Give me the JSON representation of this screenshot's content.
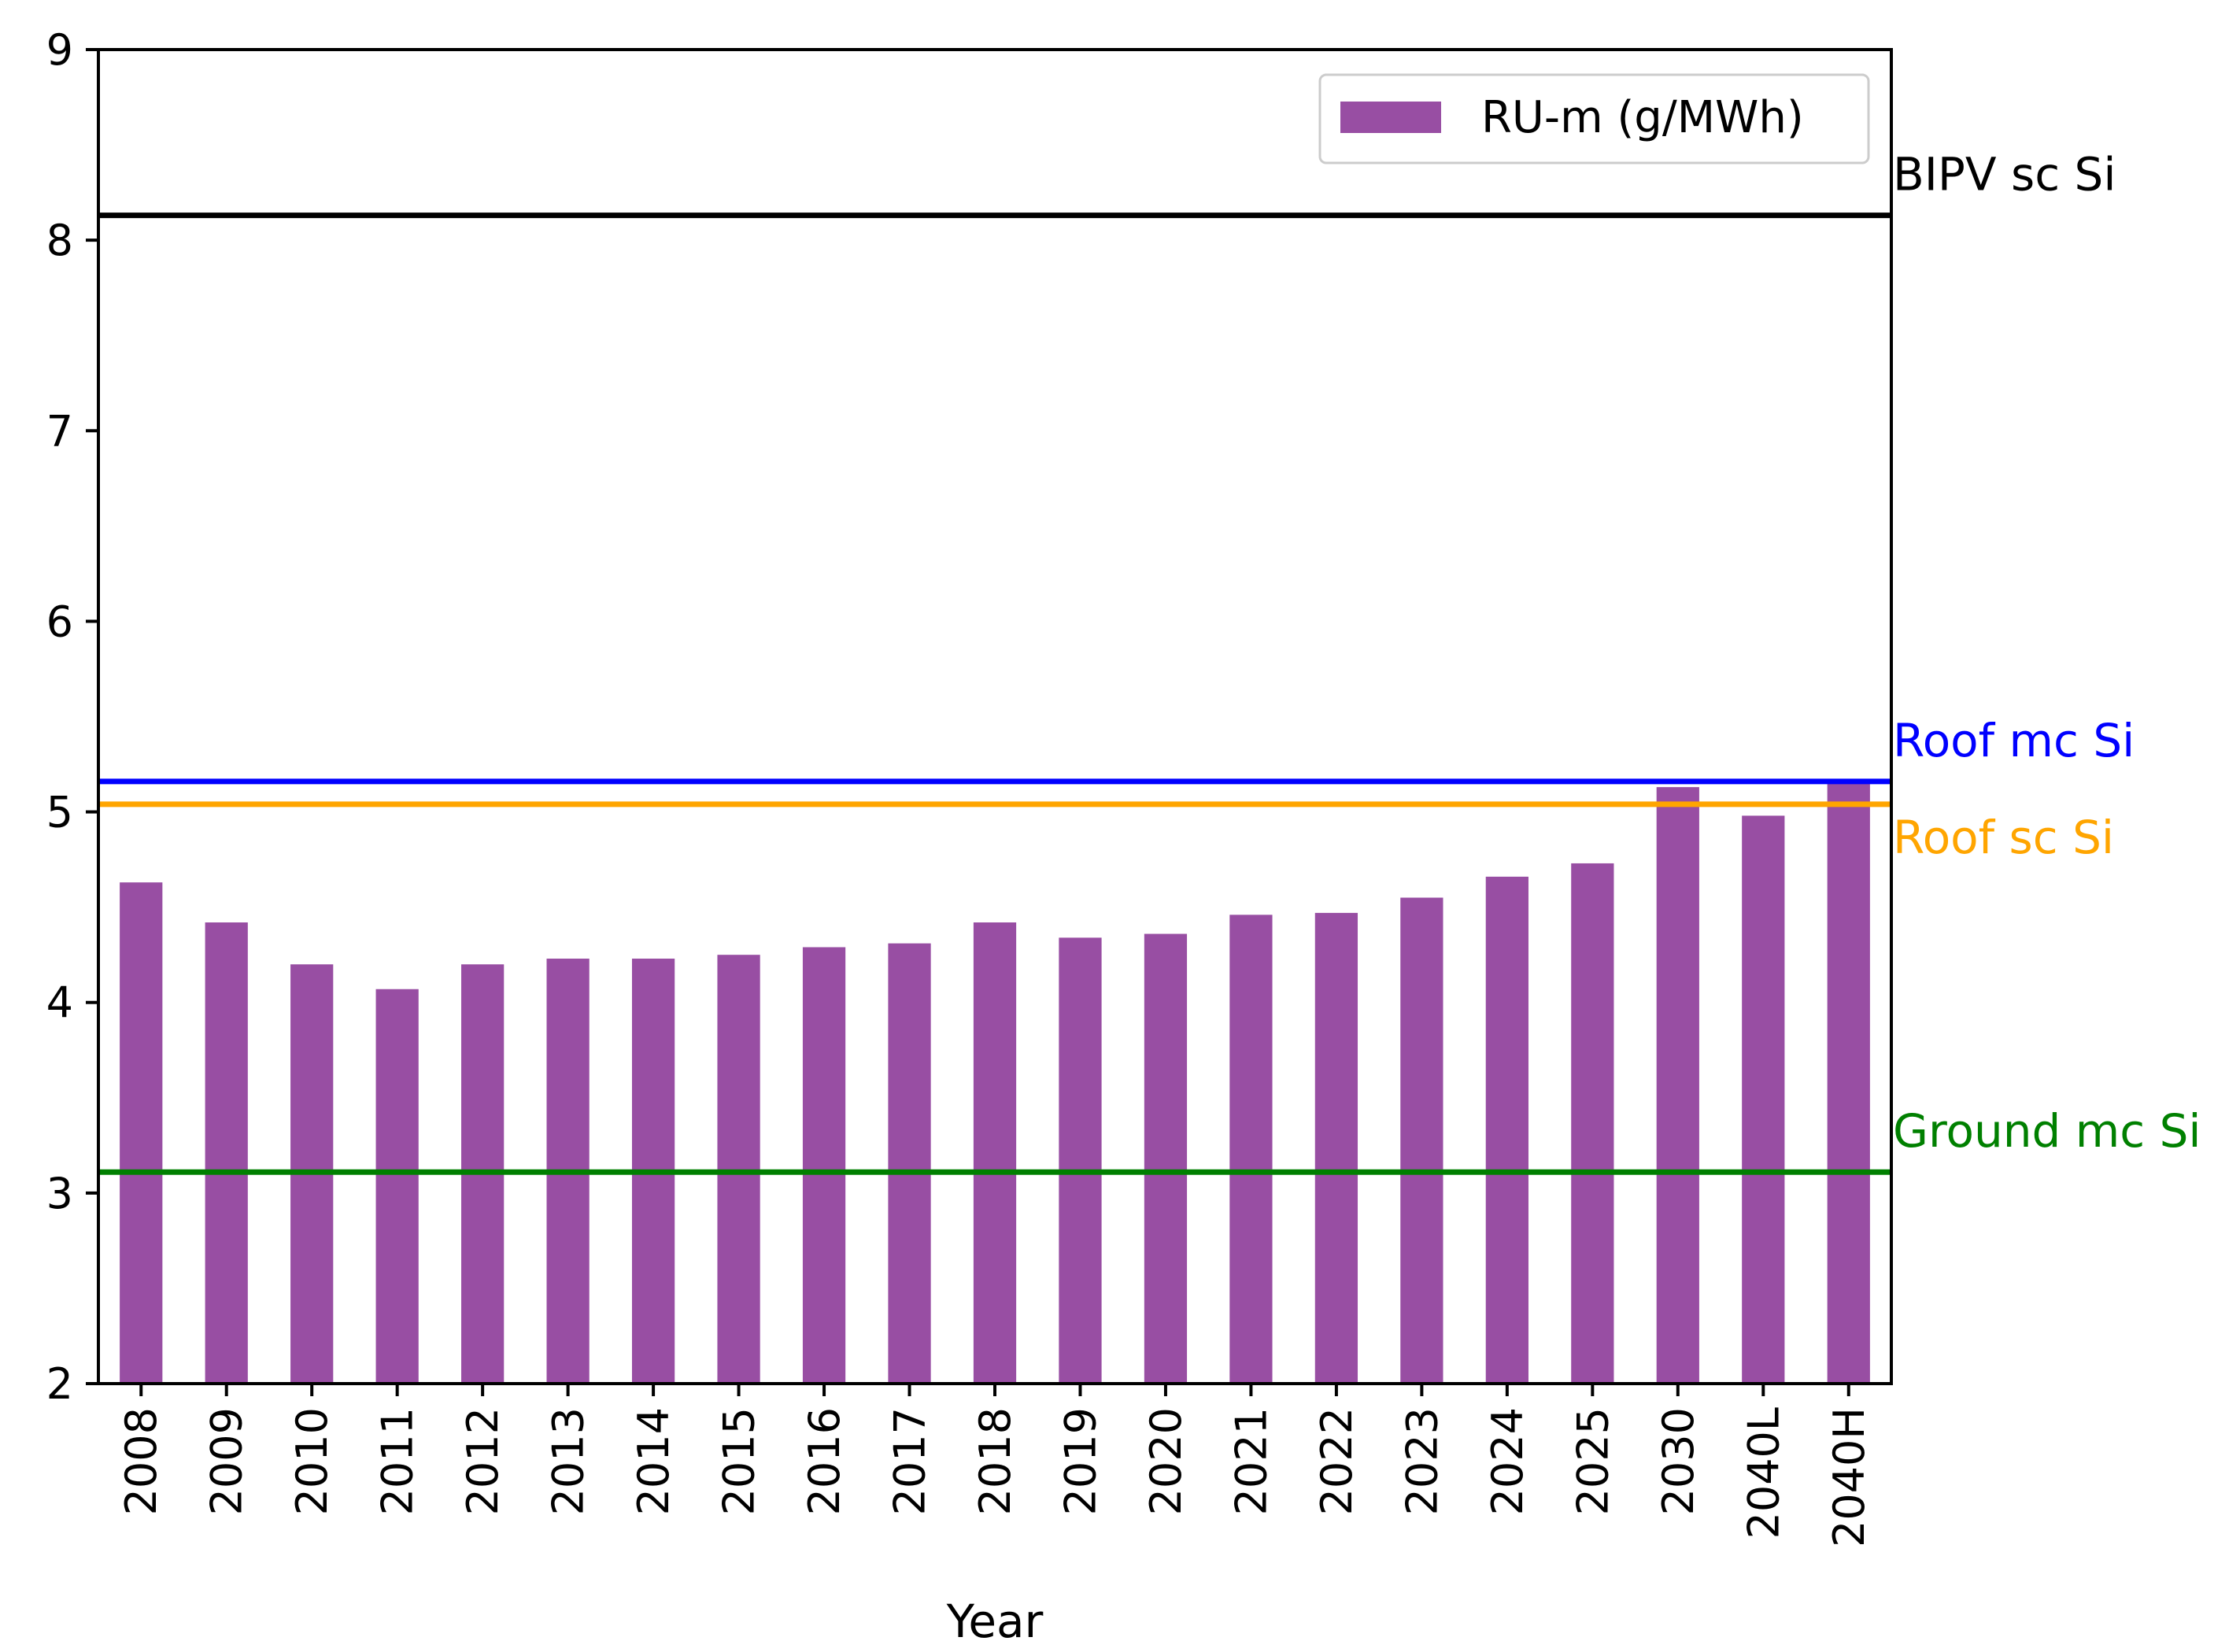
{
  "chart_data": {
    "type": "bar",
    "title": "",
    "xlabel": "Year",
    "ylabel": "",
    "ylim": [
      2,
      9
    ],
    "yticks": [
      2,
      3,
      4,
      5,
      6,
      7,
      8,
      9
    ],
    "categories": [
      "2008",
      "2009",
      "2010",
      "2011",
      "2012",
      "2013",
      "2014",
      "2015",
      "2016",
      "2017",
      "2018",
      "2019",
      "2020",
      "2021",
      "2022",
      "2023",
      "2024",
      "2025",
      "2030",
      "2040L",
      "2040H"
    ],
    "series": [
      {
        "name": "RU-m (g/MWh)",
        "color": "#984ea3",
        "values": [
          4.63,
          4.42,
          4.2,
          4.07,
          4.2,
          4.23,
          4.23,
          4.25,
          4.29,
          4.31,
          4.42,
          4.34,
          4.36,
          4.46,
          4.47,
          4.55,
          4.66,
          4.73,
          5.13,
          4.98,
          5.15
        ]
      }
    ],
    "reference_lines": [
      {
        "label": "BIPV sc Si",
        "value": 8.13,
        "color": "#000000"
      },
      {
        "label": "Roof mc Si",
        "value": 5.16,
        "color": "#0000ff"
      },
      {
        "label": "Roof sc Si",
        "value": 5.04,
        "color": "#ffa500"
      },
      {
        "label": "Ground mc Si",
        "value": 3.11,
        "color": "#008000"
      }
    ],
    "legend": {
      "position": "top-right",
      "entries": [
        "RU-m (g/MWh)"
      ]
    },
    "grid": false
  }
}
